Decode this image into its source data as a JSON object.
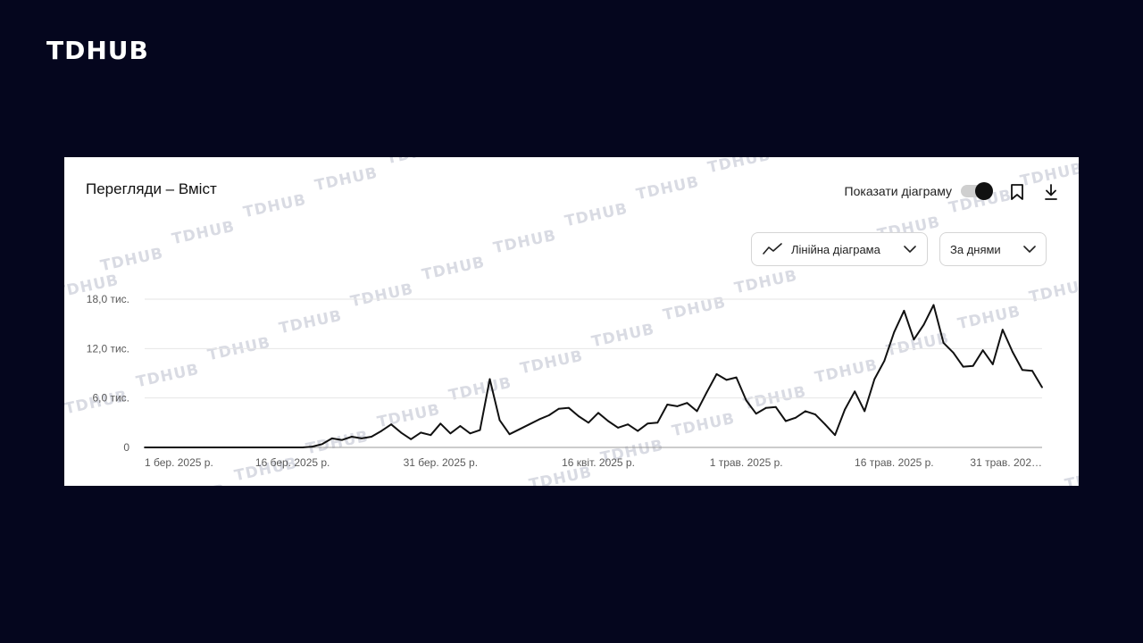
{
  "brand": "TDHUB",
  "watermark_text": "TDHUB",
  "card": {
    "title": "Перегляди – Вміст",
    "toggle_label": "Показати діаграму",
    "toggle_on": true,
    "chart_type_select": "Лінійна діаграма",
    "period_select": "За днями"
  },
  "colors": {
    "background": "#05061e",
    "line": "#111111",
    "grid": "#e6e6e6"
  },
  "chart_data": {
    "type": "line",
    "title": "Перегляди – Вміст",
    "ylim": [
      0,
      18000
    ],
    "y_ticks": [
      {
        "value": 0,
        "label": "0"
      },
      {
        "value": 6000,
        "label": "6,0 тис."
      },
      {
        "value": 12000,
        "label": "12,0 тис."
      },
      {
        "value": 18000,
        "label": "18,0 тис."
      }
    ],
    "x_ticks": [
      {
        "day": 0,
        "label": "1 бер. 2025 р."
      },
      {
        "day": 15,
        "label": "16 бер. 2025 р."
      },
      {
        "day": 30,
        "label": "31 бер. 2025 р."
      },
      {
        "day": 46,
        "label": "16 квіт. 2025 р."
      },
      {
        "day": 61,
        "label": "1 трав. 2025 р."
      },
      {
        "day": 76,
        "label": "16 трав. 2025 р."
      },
      {
        "day": 91,
        "label": "31 трав. 202…"
      }
    ],
    "grid": true,
    "series": [
      {
        "values": [
          0,
          0,
          0,
          0,
          0,
          0,
          0,
          0,
          0,
          0,
          0,
          0,
          0,
          0,
          0,
          0,
          0,
          100,
          400,
          1100,
          900,
          1300,
          1100,
          1300,
          2000,
          2800,
          1800,
          1000,
          1800,
          1500,
          2900,
          1700,
          2600,
          1700,
          2100,
          8300,
          3300,
          1600,
          2200,
          2800,
          3400,
          3900,
          4700,
          4800,
          3800,
          3000,
          4200,
          3200,
          2400,
          2800,
          2000,
          2900,
          3000,
          5200,
          5000,
          5400,
          4400,
          6700,
          8900,
          8200,
          8500,
          5700,
          4100,
          4800,
          4900,
          3200,
          3600,
          4400,
          4000,
          2800,
          1500,
          4600,
          6800,
          4400,
          8300,
          10500,
          14000,
          16600,
          13100,
          14900,
          17300,
          12700,
          11500,
          9800,
          9900,
          11800,
          10100,
          14300,
          11600,
          9400,
          9300,
          7300
        ]
      }
    ]
  }
}
